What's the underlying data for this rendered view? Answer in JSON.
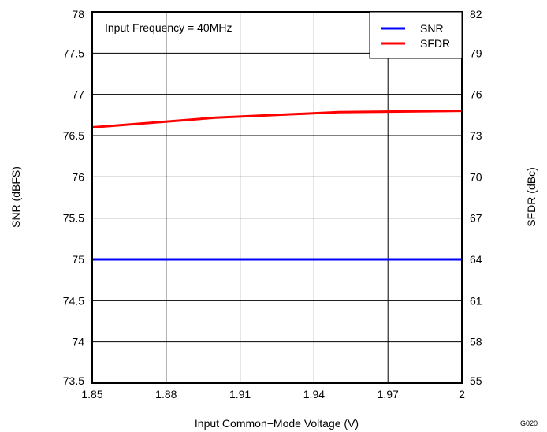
{
  "chart_data": {
    "type": "line",
    "annotation": "Input Frequency = 40MHz",
    "figure_id": "G020",
    "xlabel": "Input Common−Mode Voltage (V)",
    "ylabel_left": "SNR (dBFS)",
    "ylabel_right": "SFDR (dBc)",
    "xlim": [
      1.85,
      2.0
    ],
    "ylim_left": [
      73.5,
      78
    ],
    "ylim_right": [
      55,
      82
    ],
    "x_ticks": [
      "1.85",
      "1.88",
      "1.91",
      "1.94",
      "1.97",
      "2"
    ],
    "y_left_ticks": [
      "78",
      "77.5",
      "77",
      "76.5",
      "76",
      "75.5",
      "75",
      "74.5",
      "74",
      "73.5"
    ],
    "y_right_ticks": [
      "82",
      "79",
      "76",
      "73",
      "70",
      "67",
      "64",
      "61",
      "58",
      "55"
    ],
    "grid": true,
    "legend_position": "top-right",
    "series": [
      {
        "name": "SNR",
        "axis": "left",
        "color": "#0000ff",
        "x": [
          1.85,
          1.9,
          1.95,
          2.0
        ],
        "y": [
          75.0,
          75.0,
          75.0,
          75.0
        ]
      },
      {
        "name": "SFDR",
        "axis": "right",
        "color": "#ff0000",
        "x": [
          1.85,
          1.9,
          1.95,
          2.0
        ],
        "y": [
          73.6,
          74.3,
          74.7,
          74.8
        ]
      }
    ]
  }
}
